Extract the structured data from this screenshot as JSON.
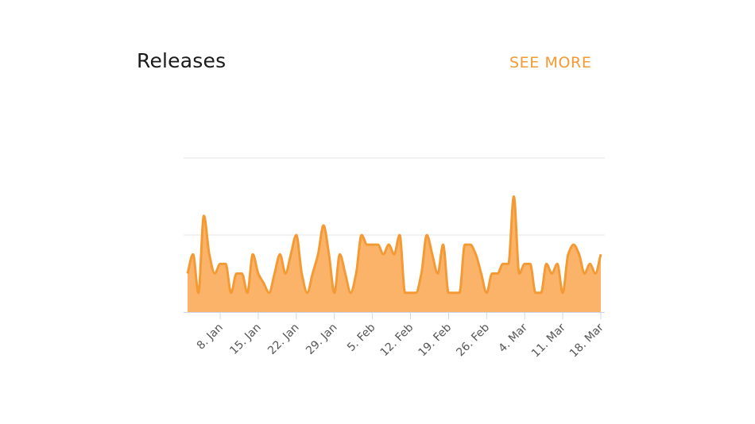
{
  "card": {
    "title": "Releases",
    "see_more_label": "SEE MORE"
  },
  "colors": {
    "series": "#f49a34",
    "area": "#fbb36a",
    "grid": "#e6e6e6",
    "axis": "#ccd6eb",
    "accent": "#f49a34"
  },
  "chart_data": {
    "type": "area",
    "title": "",
    "xlabel": "",
    "ylabel": "",
    "ylim": [
      0,
      8
    ],
    "grid": true,
    "legend": "none",
    "x_ticks": [
      {
        "day": 8,
        "label": "8. Jan"
      },
      {
        "day": 15,
        "label": "15. Jan"
      },
      {
        "day": 22,
        "label": "22. Jan"
      },
      {
        "day": 29,
        "label": "29. Jan"
      },
      {
        "day": 36,
        "label": "5. Feb"
      },
      {
        "day": 43,
        "label": "12. Feb"
      },
      {
        "day": 50,
        "label": "19. Feb"
      },
      {
        "day": 57,
        "label": "26. Feb"
      },
      {
        "day": 64,
        "label": "4. Mar"
      },
      {
        "day": 71,
        "label": "11. Mar"
      },
      {
        "day": 78,
        "label": "18. Mar"
      }
    ],
    "x_range": [
      2,
      78
    ],
    "series": [
      {
        "values": [
          [
            2,
            2
          ],
          [
            3,
            3
          ],
          [
            4,
            1
          ],
          [
            5,
            5
          ],
          [
            6,
            3
          ],
          [
            7,
            2
          ],
          [
            8,
            2.5
          ],
          [
            9,
            2.5
          ],
          [
            10,
            1
          ],
          [
            11,
            2
          ],
          [
            12,
            2
          ],
          [
            13,
            1
          ],
          [
            14,
            3
          ],
          [
            15,
            2
          ],
          [
            16,
            1.5
          ],
          [
            17,
            1
          ],
          [
            18,
            2
          ],
          [
            19,
            3
          ],
          [
            20,
            2
          ],
          [
            21,
            3
          ],
          [
            22,
            4
          ],
          [
            23,
            2
          ],
          [
            24,
            1
          ],
          [
            25,
            2
          ],
          [
            26,
            3
          ],
          [
            27,
            4.5
          ],
          [
            28,
            3
          ],
          [
            29,
            1
          ],
          [
            30,
            3
          ],
          [
            31,
            2
          ],
          [
            32,
            1
          ],
          [
            33,
            2
          ],
          [
            34,
            4
          ],
          [
            35,
            3.5
          ],
          [
            36,
            3.5
          ],
          [
            37,
            3.5
          ],
          [
            38,
            3
          ],
          [
            39,
            3.5
          ],
          [
            40,
            3
          ],
          [
            41,
            4
          ],
          [
            42,
            1
          ],
          [
            43,
            1
          ],
          [
            44,
            1
          ],
          [
            45,
            2
          ],
          [
            46,
            4
          ],
          [
            47,
            3
          ],
          [
            48,
            2
          ],
          [
            49,
            3.5
          ],
          [
            50,
            1
          ],
          [
            51,
            1
          ],
          [
            52,
            1
          ],
          [
            53,
            3.5
          ],
          [
            54,
            3.5
          ],
          [
            55,
            3
          ],
          [
            56,
            2
          ],
          [
            57,
            1
          ],
          [
            58,
            2
          ],
          [
            59,
            2
          ],
          [
            60,
            2.5
          ],
          [
            61,
            2.5
          ],
          [
            62,
            6
          ],
          [
            63,
            2
          ],
          [
            64,
            2.5
          ],
          [
            65,
            2.5
          ],
          [
            66,
            1
          ],
          [
            67,
            1
          ],
          [
            68,
            2.5
          ],
          [
            69,
            2
          ],
          [
            70,
            2.5
          ],
          [
            71,
            1
          ],
          [
            72,
            3
          ],
          [
            73,
            3.5
          ],
          [
            74,
            3
          ],
          [
            75,
            2
          ],
          [
            76,
            2.5
          ],
          [
            77,
            2
          ],
          [
            78,
            3
          ]
        ]
      }
    ]
  }
}
